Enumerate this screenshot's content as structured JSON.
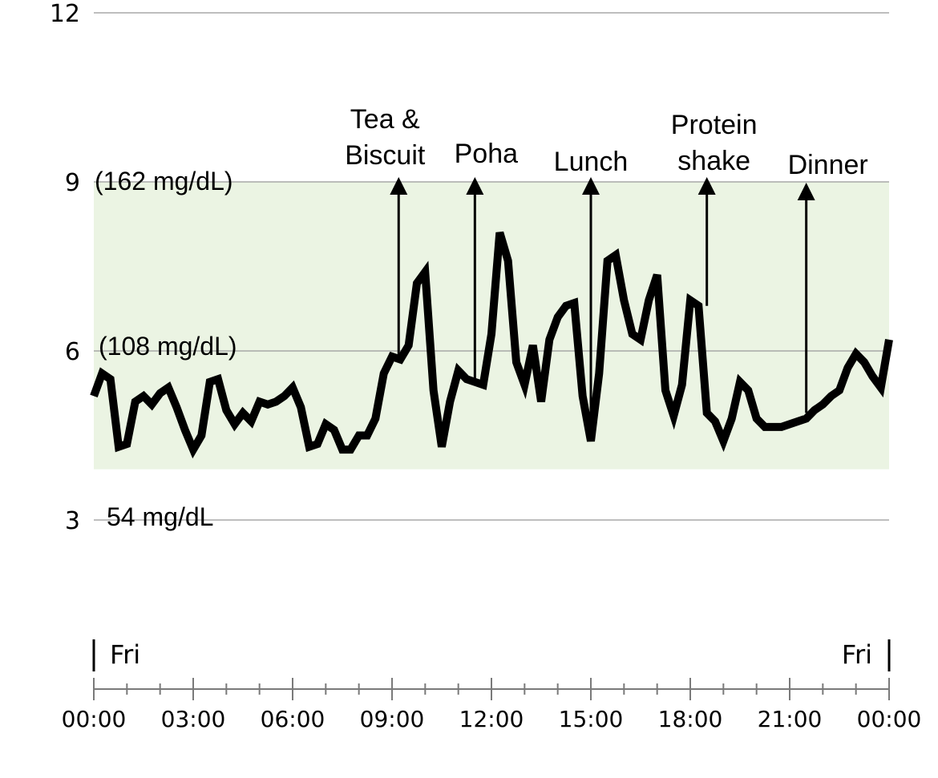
{
  "chart_data": {
    "type": "line",
    "title": "",
    "xlabel": "",
    "ylabel": "",
    "xlim": [
      0,
      24
    ],
    "ylim": [
      3,
      12
    ],
    "grid": true,
    "target_range": {
      "low": 3.9,
      "high": 9
    },
    "y_ticks": [
      {
        "value": 12,
        "label": "12"
      },
      {
        "value": 9,
        "label": "9"
      },
      {
        "value": 6,
        "label": "6"
      },
      {
        "value": 3,
        "label": "3"
      }
    ],
    "y_mg_labels": [
      {
        "value": 9,
        "label": "(162 mg/dL)"
      },
      {
        "value": 6,
        "label": "(108 mg/dL)"
      },
      {
        "value": 3,
        "label": "54 mg/dL"
      }
    ],
    "x_ticks": [
      "00:00",
      "03:00",
      "06:00",
      "09:00",
      "12:00",
      "15:00",
      "18:00",
      "21:00",
      "00:00"
    ],
    "day_labels": {
      "start": "Fri",
      "end": "Fri"
    },
    "annotations": [
      {
        "lines": [
          "Tea &",
          "Biscuit"
        ],
        "x": 9.2,
        "y_top": 9.0,
        "y_bottom": 5.8
      },
      {
        "lines": [
          "Poha"
        ],
        "x": 11.5,
        "y_top": 9.0,
        "y_bottom": 5.4
      },
      {
        "lines": [
          "Lunch"
        ],
        "x": 15.0,
        "y_top": 9.0,
        "y_bottom": 4.6
      },
      {
        "lines": [
          "Protein",
          "shake"
        ],
        "x": 18.5,
        "y_top": 9.0,
        "y_bottom": 6.8
      },
      {
        "lines": [
          "Dinner"
        ],
        "x": 21.5,
        "y_top": 8.9,
        "y_bottom": 4.9
      }
    ],
    "series": [
      {
        "x": [
          0,
          0.25,
          0.5,
          0.75,
          1.0,
          1.25,
          1.5,
          1.75,
          2.0,
          2.25,
          2.5,
          2.75,
          3.0,
          3.25,
          3.5,
          3.75,
          4.0,
          4.25,
          4.5,
          4.75,
          5.0,
          5.25,
          5.5,
          5.75,
          6.0,
          6.25,
          6.5,
          6.75,
          7.0,
          7.25,
          7.5,
          7.75,
          8.0,
          8.25,
          8.5,
          8.75,
          9.0,
          9.25,
          9.5,
          9.75,
          10.0,
          10.25,
          10.5,
          10.75,
          11.0,
          11.25,
          11.5,
          11.75,
          12.0,
          12.25,
          12.5,
          12.75,
          13.0,
          13.25,
          13.5,
          13.75,
          14.0,
          14.25,
          14.5,
          14.75,
          15.0,
          15.25,
          15.5,
          15.75,
          16.0,
          16.25,
          16.5,
          16.75,
          17.0,
          17.25,
          17.5,
          17.75,
          18.0,
          18.25,
          18.5,
          18.75,
          19.0,
          19.25,
          19.5,
          19.75,
          20.0,
          20.25,
          20.5,
          20.75,
          21.0,
          21.25,
          21.5,
          21.75,
          22.0,
          22.25,
          22.5,
          22.75,
          23.0,
          23.25,
          23.5,
          23.75,
          24.0
        ],
        "values": [
          5.2,
          5.6,
          5.5,
          4.3,
          4.35,
          5.1,
          5.2,
          5.05,
          5.25,
          5.35,
          5.0,
          4.6,
          4.25,
          4.5,
          5.45,
          5.5,
          4.95,
          4.7,
          4.9,
          4.75,
          5.1,
          5.05,
          5.1,
          5.2,
          5.35,
          5.0,
          4.3,
          4.35,
          4.7,
          4.6,
          4.25,
          4.25,
          4.5,
          4.5,
          4.8,
          5.6,
          5.9,
          5.85,
          6.1,
          7.2,
          7.4,
          5.3,
          4.3,
          5.1,
          5.65,
          5.5,
          5.45,
          5.4,
          6.3,
          8.1,
          7.6,
          5.8,
          5.4,
          6.1,
          5.1,
          6.2,
          6.6,
          6.8,
          6.85,
          5.2,
          4.4,
          5.6,
          7.6,
          7.7,
          6.9,
          6.3,
          6.2,
          6.9,
          7.35,
          5.3,
          4.85,
          5.4,
          6.9,
          6.8,
          4.9,
          4.75,
          4.4,
          4.8,
          5.45,
          5.3,
          4.8,
          4.65,
          4.65,
          4.65,
          4.7,
          4.75,
          4.8,
          4.95,
          5.05,
          5.2,
          5.3,
          5.7,
          5.95,
          5.8,
          5.55,
          5.35,
          6.2
        ]
      }
    ],
    "colors": {
      "line": "#000000",
      "target_band": "#ebf4e3",
      "grid": "#a8a8a8",
      "axis": "#7a7a7a"
    }
  }
}
